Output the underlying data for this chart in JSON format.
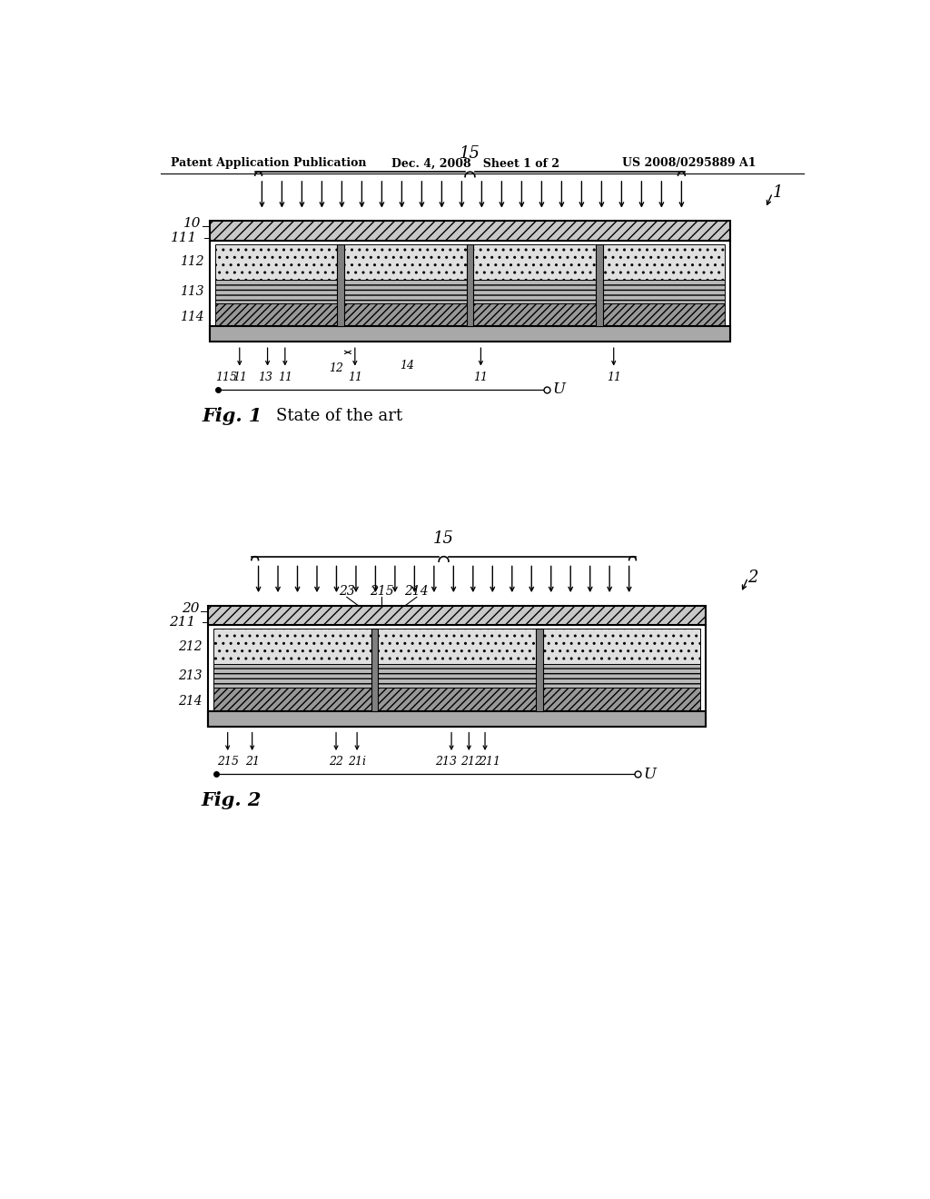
{
  "header_left": "Patent Application Publication",
  "header_center": "Dec. 4, 2008   Sheet 1 of 2",
  "header_right": "US 2008/0295889 A1",
  "fig1_caption": "Fig. 1",
  "fig1_subcaption": "State of the art",
  "fig2_caption": "Fig. 2",
  "background": "#ffffff",
  "line_color": "#000000"
}
